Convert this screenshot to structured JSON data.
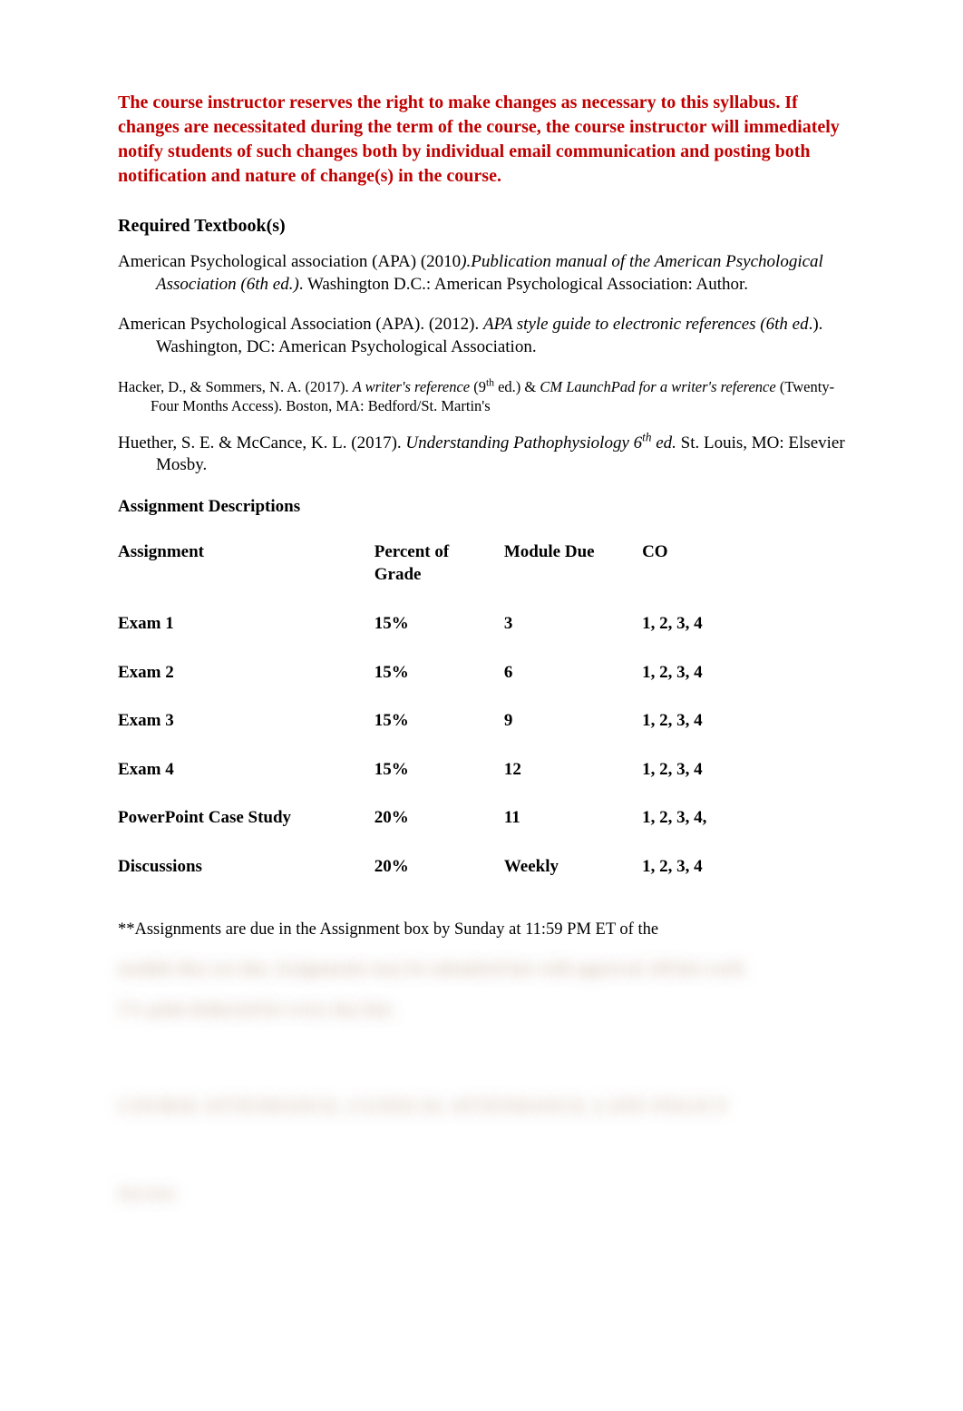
{
  "notice": "The course instructor reserves the right to make changes as necessary to this syllabus. If changes are necessitated during the term of the course, the course instructor will immediately notify students of such changes both by individual email communication and posting both notification and nature of change(s) in the course.",
  "sections": {
    "required_textbooks_heading": "Required Textbook(s)",
    "assignment_descriptions_heading": "Assignment Descriptions"
  },
  "references": {
    "apa2010_pre": "American Psychological association (APA) (2010",
    "apa2010_ital": ").Publication manual of the American Psychological Association (6th ed.)",
    "apa2010_post": ". Washington D.C.: American Psychological Association: Author.",
    "apa2012_pre": "American Psychological Association (APA). (2012).  ",
    "apa2012_ital": "APA style guide to electronic references (6th ed",
    "apa2012_post": ".). Washington, DC: American Psychological Association.",
    "hacker_pre": "Hacker, D., & Sommers, N. A. (2017).   ",
    "hacker_ital1": "A writer's reference ",
    "hacker_mid1": "(9",
    "hacker_sup": "th",
    "hacker_mid2": " ed.) & ",
    "hacker_ital2": "CM LaunchPad for a writer's reference ",
    "hacker_post": "(Twenty-Four Months Access). Boston, MA: Bedford/St. Martin's",
    "huether_pre": "Huether, S. E. & McCance, K. L. (2017). ",
    "huether_ital": "Understanding Pathophysiology 6",
    "huether_sup": "th",
    "huether_ital2": " ed.",
    "huether_post": " St. Louis, MO: Elsevier Mosby."
  },
  "assignment_table": {
    "columns": {
      "assignment": "Assignment",
      "percent": "Percent of Grade",
      "due": "Module Due",
      "co": "CO"
    },
    "rows": [
      {
        "assignment": "Exam 1",
        "percent": "15%",
        "due": "3",
        "co": "1, 2, 3, 4"
      },
      {
        "assignment": "Exam 2",
        "percent": "15%",
        "due": "6",
        "co": "1, 2, 3, 4"
      },
      {
        "assignment": "Exam 3",
        "percent": "15%",
        "due": "9",
        "co": "1, 2, 3, 4"
      },
      {
        "assignment": "Exam 4",
        "percent": "15%",
        "due": "12",
        "co": "1, 2, 3, 4"
      },
      {
        "assignment": "PowerPoint Case Study",
        "percent": "20%",
        "due": "11",
        "co": "1, 2, 3, 4,"
      },
      {
        "assignment": "Discussions",
        "percent": "20%",
        "due": "Weekly",
        "co": "1, 2, 3, 4"
      }
    ]
  },
  "footnote_visible": "**Assignments are due in the Assignment box by Sunday at 11:59 PM ET of the",
  "blurred": {
    "l1": "module they are due. Assignments may be submitted late with approval. All late work",
    "l2": "5% point deducted for every day late.",
    "l3": "COURSE ATTENDANCE, CLINICAL ATTENDANCE, LATE POLICY",
    "l4": "See text"
  },
  "colors": {
    "notice": "#c00000",
    "text": "#000000",
    "background": "#ffffff",
    "blur": "rgba(180,150,120,0.55)"
  }
}
